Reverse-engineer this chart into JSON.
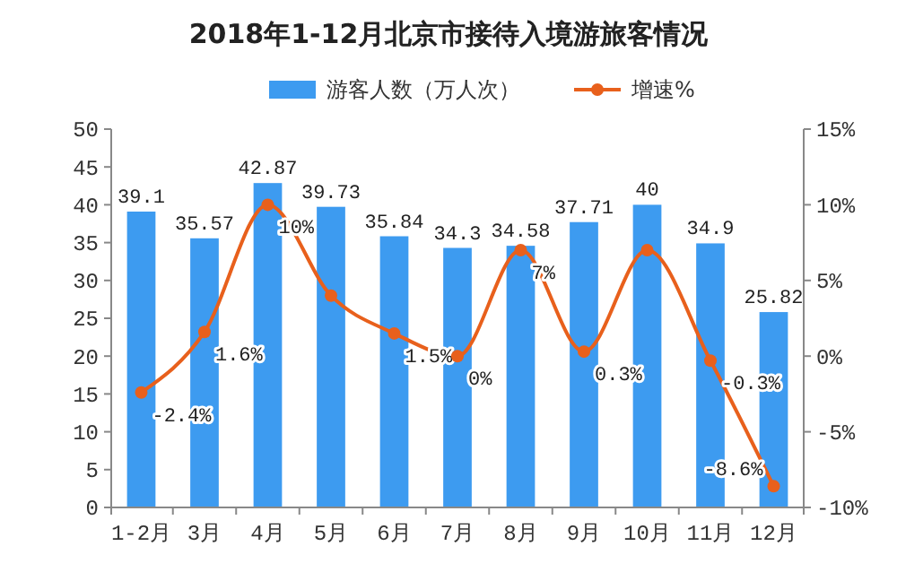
{
  "chart_data": {
    "type": "bar",
    "title": "2018年1-12月北京市接待入境游旅客情况",
    "categories": [
      "1-2月",
      "3月",
      "4月",
      "5月",
      "6月",
      "7月",
      "8月",
      "9月",
      "10月",
      "11月",
      "12月"
    ],
    "series": [
      {
        "name": "游客人数（万人次）",
        "color": "#3d9bf0",
        "values": [
          39.1,
          35.57,
          42.87,
          39.73,
          35.84,
          34.3,
          34.58,
          37.71,
          40,
          34.9,
          25.82
        ],
        "value_labels": [
          "39.1",
          "35.57",
          "42.87",
          "39.73",
          "35.84",
          "34.3",
          "34.58",
          "37.71",
          "40",
          "34.9",
          "25.82"
        ]
      },
      {
        "name": "增速%",
        "type": "line",
        "axis": "y2",
        "color": "#e8601c",
        "marker": "circle",
        "values": [
          -2.4,
          1.6,
          10,
          4,
          1.5,
          0,
          7,
          0.3,
          7,
          -0.3,
          -8.6
        ],
        "value_labels": [
          "-2.4%",
          "1.6%",
          "10%",
          null,
          "1.5%",
          "0%",
          "7%",
          "0.3%",
          null,
          "-0.3%",
          "-8.6%"
        ]
      }
    ],
    "ylim": [
      0,
      50
    ],
    "yticks": [
      0,
      5,
      10,
      15,
      20,
      25,
      30,
      35,
      40,
      45,
      50
    ],
    "y2lim": [
      -10,
      15
    ],
    "y2ticks": [
      {
        "value": -10,
        "label": "-10%"
      },
      {
        "value": -5,
        "label": "-5%"
      },
      {
        "value": 0,
        "label": "0%"
      },
      {
        "value": 5,
        "label": "5%"
      },
      {
        "value": 10,
        "label": "10%"
      },
      {
        "value": 15,
        "label": "15%"
      }
    ],
    "legend": "top",
    "grid": false
  }
}
